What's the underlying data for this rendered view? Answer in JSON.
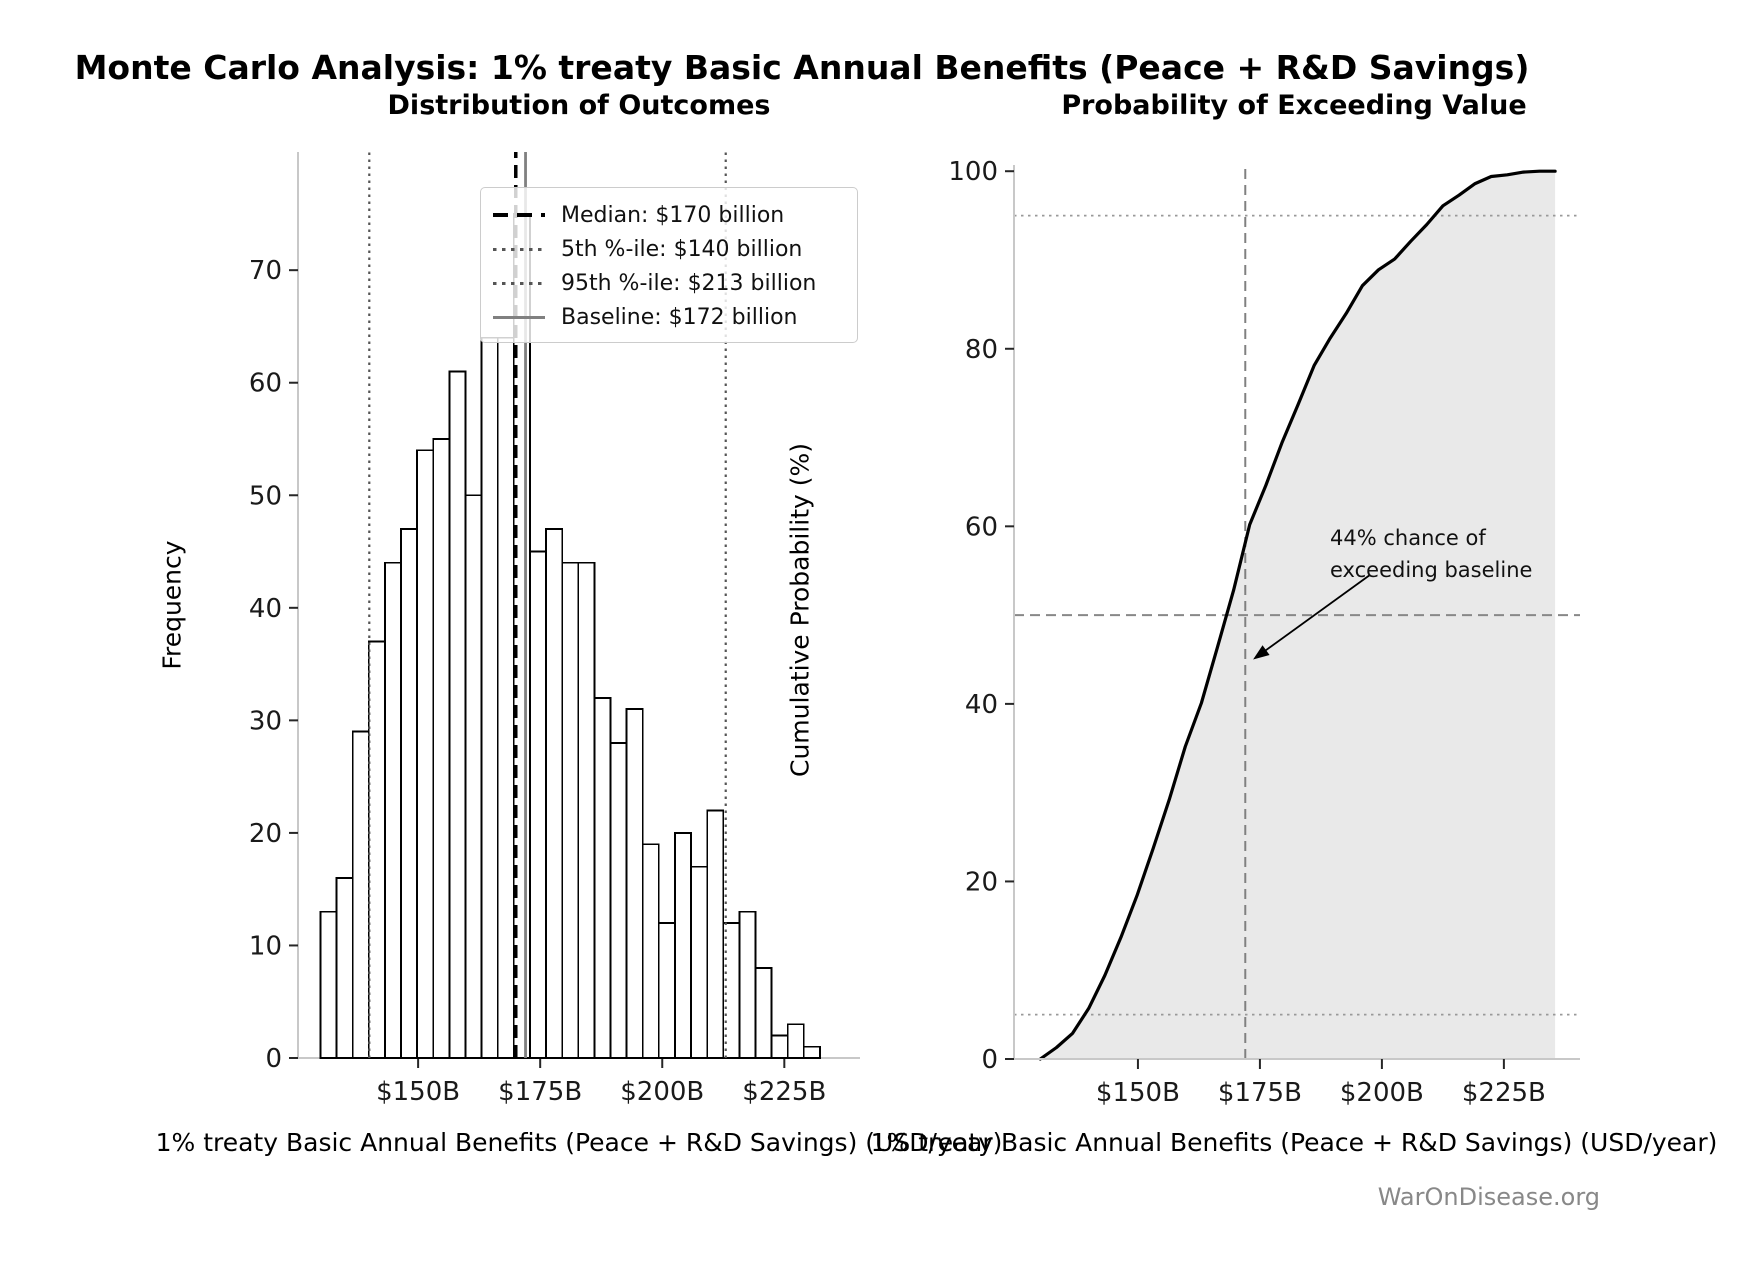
{
  "figure": {
    "suptitle": "Monte Carlo Analysis: 1% treaty Basic Annual Benefits (Peace + R&D Savings)",
    "watermark": "WarOnDisease.org"
  },
  "colors": {
    "bar_fill": "#ffffff",
    "bar_edge": "#000000",
    "median_line": "#000000",
    "percentile_line": "#555555",
    "baseline_line": "#808080",
    "cdf_line": "#000000",
    "cdf_fill": "#e9e9e9",
    "ref_dotted": "#999999",
    "ref_dashed": "#888888",
    "spine": "#c8c8c8",
    "tick_text": "#1a1a1a",
    "muted_text": "#888888"
  },
  "chart_data": [
    {
      "type": "bar",
      "subtype": "histogram",
      "title": "Distribution of Outcomes",
      "xlabel": "1% treaty Basic Annual Benefits (Peace + R&D Savings) (USD/year)",
      "ylabel": "Frequency",
      "bin_start_billion": 130.0,
      "bin_width_billion": 3.3,
      "frequencies": [
        13,
        16,
        29,
        37,
        44,
        47,
        54,
        55,
        61,
        50,
        64,
        64,
        75,
        45,
        47,
        44,
        44,
        32,
        28,
        31,
        19,
        12,
        20,
        17,
        22,
        12,
        13,
        8,
        2,
        3,
        1
      ],
      "xlim": [
        125.4,
        240.5
      ],
      "ylim": [
        0,
        80.5
      ],
      "yticks": [
        0,
        10,
        20,
        30,
        40,
        50,
        60,
        70
      ],
      "xticks": [
        {
          "value": 150,
          "label": "$150B"
        },
        {
          "value": 175,
          "label": "$175B"
        },
        {
          "value": 200,
          "label": "$200B"
        },
        {
          "value": 225,
          "label": "$225B"
        }
      ],
      "grid": false,
      "legend_position": "upper right",
      "vlines": [
        {
          "value": 170,
          "label": "Median: $170 billion",
          "style": "dashed-thick-black"
        },
        {
          "value": 140,
          "label": "5th %-ile: $140 billion",
          "style": "dotted-dark"
        },
        {
          "value": 213,
          "label": "95th %-ile: $213 billion",
          "style": "dotted-dark"
        },
        {
          "value": 172,
          "label": "Baseline: $172 billion",
          "style": "solid-gray"
        }
      ]
    },
    {
      "type": "line",
      "subtype": "cdf",
      "title": "Probability of Exceeding Value",
      "xlabel": "1% treaty Basic Annual Benefits (Peace + R&D Savings) (USD/year)",
      "ylabel": "Cumulative Probability (%)",
      "x": [
        130.0,
        133.3,
        136.6,
        139.9,
        143.2,
        146.5,
        149.8,
        153.1,
        156.4,
        159.7,
        163.0,
        166.3,
        169.6,
        172.9,
        176.2,
        179.5,
        182.8,
        186.1,
        189.4,
        192.7,
        196.0,
        199.3,
        202.6,
        205.9,
        209.2,
        212.5,
        215.8,
        219.1,
        222.4,
        225.7,
        229.0,
        232.3,
        235.5
      ],
      "y": [
        0,
        1.3,
        2.9,
        5.7,
        9.4,
        13.7,
        18.4,
        23.7,
        29.2,
        35.2,
        40.1,
        46.4,
        52.8,
        60.2,
        64.6,
        69.4,
        73.7,
        78.1,
        81.2,
        84.0,
        87.1,
        88.9,
        90.1,
        92.1,
        94.0,
        96.1,
        97.3,
        98.6,
        99.4,
        99.6,
        99.9,
        100.0,
        100.0
      ],
      "xlim": [
        124.6,
        240.6
      ],
      "ylim": [
        0,
        100.7
      ],
      "yticks": [
        0,
        20,
        40,
        60,
        80,
        100
      ],
      "xticks": [
        {
          "value": 150,
          "label": "$150B"
        },
        {
          "value": 175,
          "label": "$175B"
        },
        {
          "value": 200,
          "label": "$200B"
        },
        {
          "value": 225,
          "label": "$225B"
        }
      ],
      "grid": false,
      "fill_under_curve": true,
      "hlines": [
        {
          "value": 5,
          "style": "dotted"
        },
        {
          "value": 95,
          "style": "dotted"
        },
        {
          "value": 50,
          "style": "dashed"
        }
      ],
      "vlines": [
        {
          "value": 172,
          "style": "dashed-gray"
        }
      ],
      "annotation": {
        "line1": "44% chance of",
        "line2": "exceeding baseline",
        "arrow_tip": {
          "x_value": 173.6,
          "y_pct": 45.0
        },
        "arrow_tail": {
          "x_value": 197.5,
          "y_pct": 54.5
        }
      }
    }
  ]
}
